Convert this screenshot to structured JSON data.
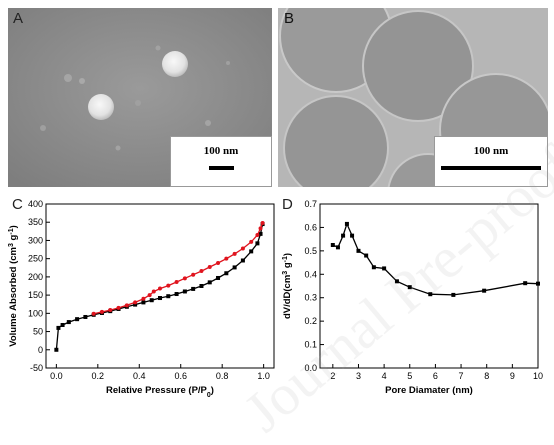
{
  "panels": {
    "a": {
      "label": "A",
      "scale_text": "100 nm"
    },
    "b": {
      "label": "B",
      "scale_text": "100 nm"
    },
    "c": {
      "label": "C"
    },
    "d": {
      "label": "D"
    }
  },
  "watermark": "Journal Pre-proof",
  "colors": {
    "adsorption": "#000000",
    "desorption": "#e0141e",
    "sem_bg": "#8a8a8a",
    "tem_bg": "#b3b3b3"
  },
  "chart_data": [
    {
      "type": "line",
      "panel": "C",
      "xlabel": "Relative Pressure (P/P0)",
      "ylabel": "Volume Absorbed (cm3 g-1)",
      "xlim": [
        -0.05,
        1.05
      ],
      "ylim": [
        -50,
        400
      ],
      "x_ticks": [
        0.0,
        0.2,
        0.4,
        0.6,
        0.8,
        1.0
      ],
      "x_tick_labels": [
        "0.0",
        "0.2",
        "0.4",
        "0.6",
        "0.8",
        "1.0"
      ],
      "y_ticks": [
        -50,
        0,
        50,
        100,
        150,
        200,
        250,
        300,
        350,
        400
      ],
      "y_tick_labels": [
        "-50",
        "0",
        "50",
        "100",
        "150",
        "200",
        "250",
        "300",
        "350",
        "400"
      ],
      "series": [
        {
          "color": "#000000",
          "x": [
            0.0,
            0.01,
            0.03,
            0.06,
            0.1,
            0.14,
            0.18,
            0.22,
            0.26,
            0.3,
            0.34,
            0.38,
            0.42,
            0.46,
            0.5,
            0.54,
            0.58,
            0.62,
            0.66,
            0.7,
            0.74,
            0.78,
            0.82,
            0.86,
            0.9,
            0.94,
            0.97,
            0.985,
            0.995
          ],
          "y": [
            0,
            60,
            68,
            76,
            84,
            90,
            96,
            101,
            106,
            112,
            118,
            124,
            130,
            136,
            142,
            147,
            153,
            160,
            167,
            175,
            185,
            197,
            210,
            226,
            245,
            270,
            292,
            318,
            345
          ]
        },
        {
          "color": "#e0141e",
          "x": [
            0.995,
            0.985,
            0.97,
            0.94,
            0.9,
            0.86,
            0.82,
            0.78,
            0.74,
            0.7,
            0.66,
            0.62,
            0.58,
            0.54,
            0.5,
            0.47,
            0.45,
            0.42,
            0.38,
            0.34,
            0.3,
            0.26,
            0.22,
            0.18
          ],
          "y": [
            348,
            333,
            315,
            296,
            278,
            263,
            250,
            238,
            227,
            216,
            206,
            196,
            186,
            176,
            168,
            160,
            150,
            140,
            130,
            122,
            115,
            109,
            104,
            99
          ]
        }
      ]
    },
    {
      "type": "line",
      "panel": "D",
      "xlabel": "Pore Diamater (nm)",
      "ylabel": "dV/dD(cm3 g-1)",
      "xlim": [
        1.5,
        10
      ],
      "ylim": [
        0.0,
        0.7
      ],
      "x_ticks": [
        2,
        3,
        4,
        5,
        6,
        7,
        8,
        9,
        10
      ],
      "x_tick_labels": [
        "2",
        "3",
        "4",
        "5",
        "6",
        "7",
        "8",
        "9",
        "10"
      ],
      "y_ticks": [
        0.0,
        0.1,
        0.2,
        0.3,
        0.4,
        0.5,
        0.6,
        0.7
      ],
      "y_tick_labels": [
        "0.0",
        "0.1",
        "0.2",
        "0.3",
        "0.4",
        "0.5",
        "0.6",
        "0.7"
      ],
      "series": [
        {
          "color": "#000000",
          "x": [
            2.0,
            2.2,
            2.4,
            2.55,
            2.75,
            3.0,
            3.3,
            3.6,
            4.0,
            4.5,
            5.0,
            5.8,
            6.7,
            7.9,
            9.5,
            10.0
          ],
          "y": [
            0.525,
            0.515,
            0.565,
            0.615,
            0.565,
            0.5,
            0.48,
            0.43,
            0.425,
            0.37,
            0.345,
            0.315,
            0.312,
            0.33,
            0.362,
            0.36
          ]
        }
      ]
    }
  ]
}
